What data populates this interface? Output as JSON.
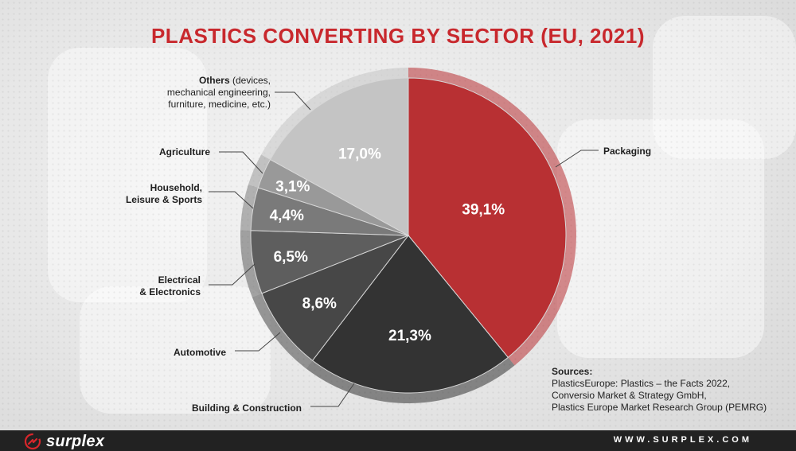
{
  "title": "PLASTICS CONVERTING BY SECTOR (EU, 2021)",
  "colors": {
    "accent": "#c8282d",
    "packaging": "#b83033",
    "construction": "#333333"
  },
  "chart_data": {
    "type": "pie",
    "title": "PLASTICS CONVERTING BY SECTOR (EU, 2021)",
    "unit": "%",
    "slices": [
      {
        "label": "Packaging",
        "value": 39.1,
        "display": "39,1%",
        "color": "#b83033"
      },
      {
        "label": "Building & Construction",
        "value": 21.3,
        "display": "21,3%",
        "color": "#333333"
      },
      {
        "label": "Automotive",
        "value": 8.6,
        "display": "8,6%",
        "color": "#474747"
      },
      {
        "label": "Electrical & Electronics",
        "value": 6.5,
        "display": "6,5%",
        "color": "#5e5e5e"
      },
      {
        "label": "Household, Leisure & Sports",
        "value": 4.4,
        "display": "4,4%",
        "color": "#7a7a7a"
      },
      {
        "label": "Agriculture",
        "value": 3.1,
        "display": "3,1%",
        "color": "#999999"
      },
      {
        "label": "Others (devices, mechanical engineering, furniture, medicine, etc.)",
        "value": 17.0,
        "display": "17,0%",
        "color": "#c4c4c4"
      }
    ]
  },
  "labels": {
    "packaging": "Packaging",
    "construction": "Building & Construction",
    "automotive": "Automotive",
    "electrical_1": "Electrical",
    "electrical_2": "& Electronics",
    "household_1": "Household,",
    "household_2": "Leisure & Sports",
    "agriculture": "Agriculture",
    "others_bold": "Others",
    "others_1": " (devices,",
    "others_2": "mechanical engineering,",
    "others_3": "furniture, medicine, etc.)"
  },
  "sources": {
    "heading": "Sources:",
    "lines": [
      "PlasticsEurope: Plastics – the Facts 2022,",
      "Conversio Market & Strategy GmbH,",
      "Plastics Europe Market Research Group (PEMRG)"
    ]
  },
  "footer": {
    "brand": "surplex",
    "url": "WWW.SURPLEX.COM"
  }
}
